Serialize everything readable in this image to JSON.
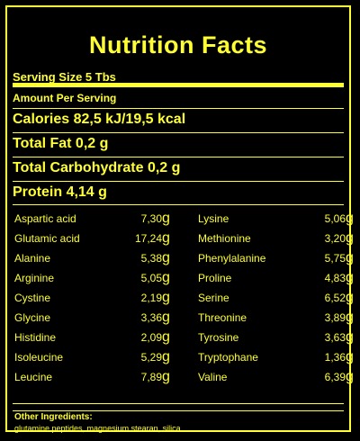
{
  "title": "Nutrition Facts",
  "serving": "Serving Size 5 Tbs",
  "amount": "Amount Per Serving",
  "calories": "Calories 82,5 kJ/19,5 kcal",
  "total_fat": "Total Fat 0,2 g",
  "total_carbs": "Total Carbohydrate 0,2 g",
  "protein": "Protein 4,14 g",
  "amino_left": [
    {
      "name": "Aspartic acid",
      "value": "7,30",
      "unit": "g"
    },
    {
      "name": "Glutamic acid",
      "value": "17,24",
      "unit": "g"
    },
    {
      "name": "Alanine",
      "value": "5,38",
      "unit": "g"
    },
    {
      "name": "Arginine",
      "value": "5,05",
      "unit": "g"
    },
    {
      "name": "Cystine",
      "value": "2,19",
      "unit": "g"
    },
    {
      "name": "Glycine",
      "value": "3,36",
      "unit": "g"
    },
    {
      "name": "Histidine",
      "value": "2,09",
      "unit": "g"
    },
    {
      "name": "Isoleucine",
      "value": "5,29",
      "unit": "g"
    },
    {
      "name": "Leucine",
      "value": "7,89",
      "unit": "g"
    }
  ],
  "amino_right": [
    {
      "name": "Lysine",
      "value": "5,06",
      "unit": "g"
    },
    {
      "name": "Methionine",
      "value": "3,20",
      "unit": "g"
    },
    {
      "name": "Phenylalanine",
      "value": "5,75",
      "unit": "g"
    },
    {
      "name": "Proline",
      "value": "4,83",
      "unit": "g"
    },
    {
      "name": "Serine",
      "value": "6,52",
      "unit": "g"
    },
    {
      "name": "Threonine",
      "value": "3,89",
      "unit": "g"
    },
    {
      "name": "Tyrosine",
      "value": "3,63",
      "unit": "g"
    },
    {
      "name": "Tryptophane",
      "value": "1,36",
      "unit": "g"
    },
    {
      "name": "Valine",
      "value": "6,39",
      "unit": "g"
    }
  ],
  "other_title": "Other Ingredients:",
  "other_text": "glutamine peptides, magnesium stearan, silica"
}
